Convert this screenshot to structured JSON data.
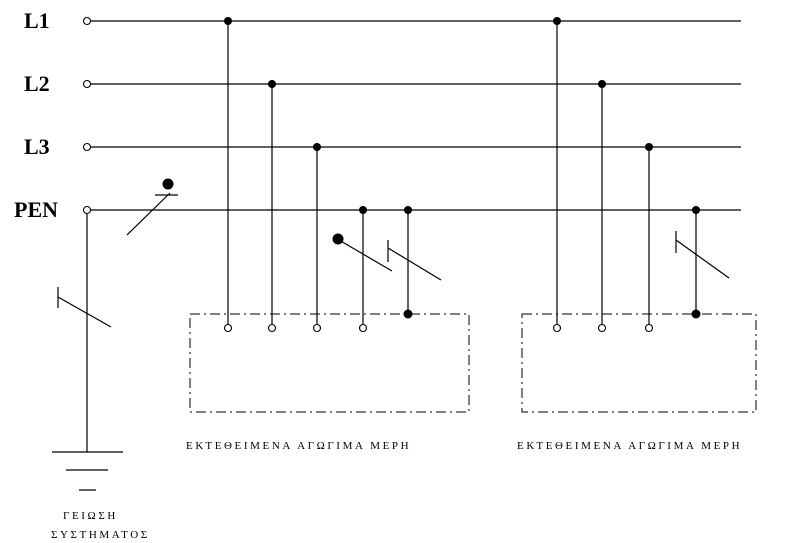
{
  "buses": [
    {
      "label": "L1"
    },
    {
      "label": "L2"
    },
    {
      "label": "L3"
    },
    {
      "label": "PEN"
    }
  ],
  "captions": {
    "exposed_parts_left": "ΕΚΤΕΘΕΙΜΕΝΑ ΑΓΩΓΙΜΑ ΜΕΡΗ",
    "exposed_parts_right": "ΕΚΤΕΘΕΙΜΕΝΑ ΑΓΩΓΙΜΑ ΜΕΡΗ",
    "system_earthing_line1": "ΓΕΙΩΣΗ",
    "system_earthing_line2": "ΣΥΣΤΗΜΑΤΟΣ"
  }
}
